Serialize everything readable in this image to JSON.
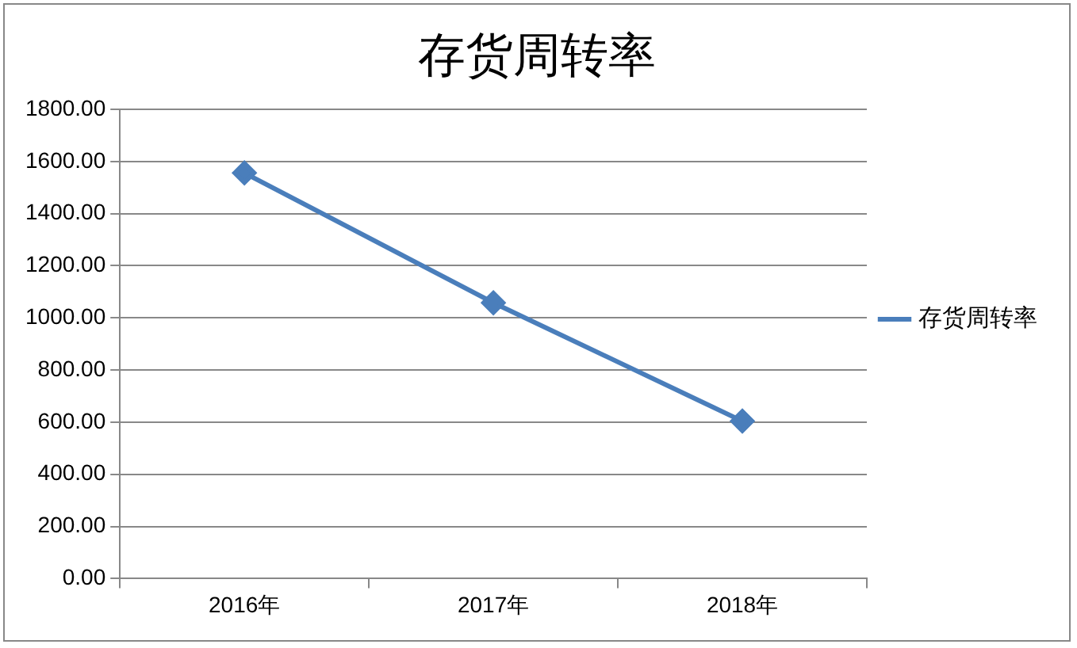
{
  "chart_data": {
    "type": "line",
    "title": "存货周转率",
    "categories": [
      "2016年",
      "2017年",
      "2018年"
    ],
    "series": [
      {
        "name": "存货周转率",
        "color": "#4a7ebb",
        "values": [
          1556,
          1058,
          604
        ]
      }
    ],
    "ylim": [
      0,
      1800
    ],
    "yticks": [
      {
        "value": 0,
        "label": "0.00"
      },
      {
        "value": 200,
        "label": "200.00"
      },
      {
        "value": 400,
        "label": "400.00"
      },
      {
        "value": 600,
        "label": "600.00"
      },
      {
        "value": 800,
        "label": "800.00"
      },
      {
        "value": 1000,
        "label": "1000.00"
      },
      {
        "value": 1200,
        "label": "1200.00"
      },
      {
        "value": 1400,
        "label": "1400.00"
      },
      {
        "value": 1600,
        "label": "1600.00"
      },
      {
        "value": 1800,
        "label": "1800.00"
      }
    ],
    "grid": "y",
    "legend": "right",
    "marker": "diamond",
    "line_style": "solid"
  }
}
